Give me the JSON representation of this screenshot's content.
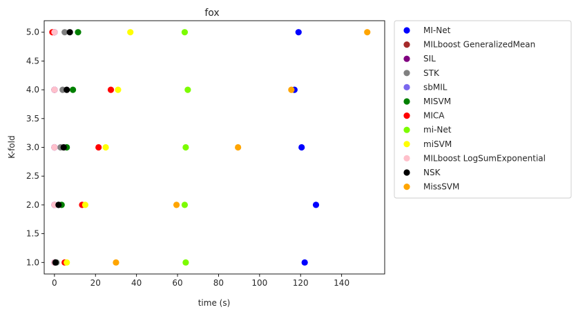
{
  "chart_data": {
    "type": "scatter",
    "title": "fox",
    "xlabel": "time (s)",
    "ylabel": "K-fold",
    "xlim": [
      -5,
      161
    ],
    "ylim": [
      0.8,
      5.2
    ],
    "xticks": [
      0,
      20,
      40,
      60,
      80,
      100,
      120,
      140
    ],
    "yticks": [
      1.0,
      1.5,
      2.0,
      2.5,
      3.0,
      3.5,
      4.0,
      4.5,
      5.0
    ],
    "ytick_labels": [
      "1.0",
      "1.5",
      "2.0",
      "2.5",
      "3.0",
      "3.5",
      "4.0",
      "4.5",
      "5.0"
    ],
    "grid": false,
    "legend_placement": "outside-right",
    "series": [
      {
        "name": "MI-Net",
        "color": "#0000ff",
        "points": [
          [
            122,
            1
          ],
          [
            127.5,
            2
          ],
          [
            120.5,
            3
          ],
          [
            117,
            4
          ],
          [
            119,
            5
          ]
        ]
      },
      {
        "name": "MILboost GeneralizedMean",
        "color": "#a52a2a",
        "points": [
          [
            0,
            1
          ],
          [
            0,
            2
          ],
          [
            0,
            3
          ],
          [
            0,
            4
          ],
          [
            0,
            5
          ]
        ]
      },
      {
        "name": "SIL",
        "color": "#800080",
        "points": [
          [
            0,
            1
          ],
          [
            0,
            2
          ],
          [
            0,
            3
          ],
          [
            0,
            4
          ],
          [
            0,
            5
          ]
        ]
      },
      {
        "name": "STK",
        "color": "#808080",
        "points": [
          [
            1,
            1
          ],
          [
            2,
            2
          ],
          [
            3,
            3
          ],
          [
            4,
            4
          ],
          [
            5,
            5
          ]
        ]
      },
      {
        "name": "sbMIL",
        "color": "#7b68ee",
        "points": [
          [
            0,
            1
          ],
          [
            0,
            2
          ],
          [
            0,
            3
          ],
          [
            0,
            4
          ],
          [
            0,
            5
          ]
        ]
      },
      {
        "name": "MISVM",
        "color": "#008000",
        "points": [
          [
            0.5,
            1
          ],
          [
            3.5,
            2
          ],
          [
            6,
            3
          ],
          [
            9,
            4
          ],
          [
            11.5,
            5
          ]
        ]
      },
      {
        "name": "MICA",
        "color": "#ff0000",
        "points": [
          [
            5,
            1
          ],
          [
            13.5,
            2
          ],
          [
            21.5,
            3
          ],
          [
            27.5,
            4
          ],
          [
            -1,
            5
          ]
        ]
      },
      {
        "name": "mi-Net",
        "color": "#7cfc00",
        "points": [
          [
            64,
            1
          ],
          [
            63.5,
            2
          ],
          [
            64,
            3
          ],
          [
            65,
            4
          ],
          [
            63.5,
            5
          ]
        ]
      },
      {
        "name": "miSVM",
        "color": "#ffff00",
        "points": [
          [
            6,
            1
          ],
          [
            15,
            2
          ],
          [
            25,
            3
          ],
          [
            31,
            4
          ],
          [
            37,
            5
          ]
        ]
      },
      {
        "name": "MILboost LogSumExponential",
        "color": "#ffc0cb",
        "points": [
          [
            0,
            1
          ],
          [
            0,
            2
          ],
          [
            0,
            3
          ],
          [
            0,
            4
          ],
          [
            0,
            5
          ]
        ]
      },
      {
        "name": "NSK",
        "color": "#000000",
        "points": [
          [
            0.5,
            1
          ],
          [
            2,
            2
          ],
          [
            4.5,
            3
          ],
          [
            6,
            4
          ],
          [
            7.5,
            5
          ]
        ]
      },
      {
        "name": "MissSVM",
        "color": "#ffa500",
        "points": [
          [
            30,
            1
          ],
          [
            59.5,
            2
          ],
          [
            89.5,
            3
          ],
          [
            115.5,
            4
          ],
          [
            152.5,
            5
          ]
        ]
      }
    ]
  }
}
